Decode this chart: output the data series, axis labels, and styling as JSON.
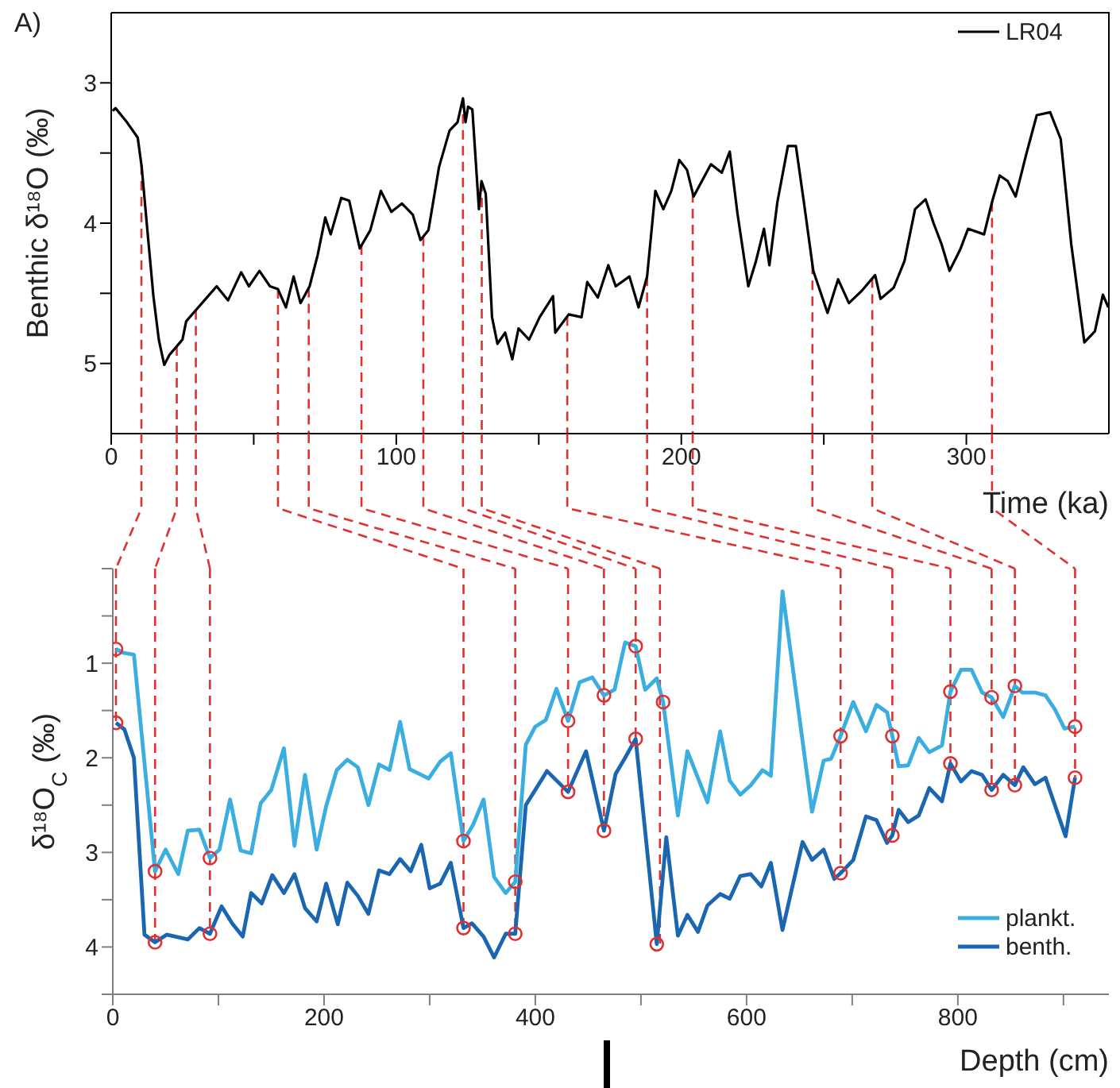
{
  "chart_data": [
    {
      "type": "line",
      "annotations": [
        "A)"
      ],
      "xlabel": "Time (ka)",
      "ylabel": "Benthic δ¹⁸O (‰)",
      "legend": "top right",
      "xlim": [
        0,
        350
      ],
      "xticks": [
        0,
        {
          "value": 50,
          "label": null
        },
        100,
        {
          "value": 150,
          "label": null
        },
        200,
        {
          "value": 250,
          "label": null
        },
        300
      ],
      "ylim": [
        5.5,
        2.5
      ],
      "yticks": [
        3,
        {
          "value": 3.5,
          "label": null
        },
        4,
        {
          "value": 4.5,
          "label": null
        },
        5
      ],
      "x": [
        0.5,
        1.5,
        5.5,
        9.3,
        10.7,
        12.6,
        14.8,
        16.7,
        18.6,
        20.4,
        25,
        26.3,
        29.7,
        37,
        41,
        45.6,
        48.3,
        52,
        55.7,
        58.5,
        61.3,
        64,
        66.4,
        69.6,
        72.4,
        75.1,
        77,
        80.7,
        83.5,
        87.2,
        90.9,
        94.6,
        98.3,
        102,
        105.8,
        108.5,
        111.3,
        115,
        118.7,
        121.5,
        123.4,
        124.3,
        125.2,
        126.7,
        129,
        129.9,
        131.4,
        133.6,
        135.5,
        138.2,
        140.7,
        142.9,
        146.6,
        150.3,
        155,
        155.8,
        160.5,
        165,
        167,
        170.7,
        174.4,
        177,
        181.8,
        185,
        188,
        190.9,
        193.7,
        196.5,
        199.3,
        202,
        204.3,
        210.4,
        214.2,
        217,
        219.7,
        223.5,
        226.2,
        229,
        230.9,
        233.7,
        237.4,
        240.2,
        243,
        246.3,
        251.3,
        255,
        258.8,
        263.4,
        268,
        269.9,
        274.5,
        278.3,
        282,
        285.7,
        288.5,
        291.3,
        294.1,
        297.8,
        300.6,
        306.2,
        309,
        311.7,
        314.5,
        317.3,
        321,
        324.7,
        329.4,
        333.1,
        336.8,
        341.4,
        345.1,
        347.9,
        349.8
      ],
      "series": [
        {
          "name": "LR04",
          "color": "#000000",
          "values": [
            3.2,
            3.18,
            3.28,
            3.39,
            3.6,
            4.03,
            4.52,
            4.83,
            5.01,
            4.94,
            4.83,
            4.7,
            4.62,
            4.45,
            4.55,
            4.35,
            4.45,
            4.34,
            4.45,
            4.47,
            4.6,
            4.38,
            4.57,
            4.45,
            4.23,
            3.96,
            4.08,
            3.82,
            3.84,
            4.18,
            4.05,
            3.77,
            3.92,
            3.86,
            3.94,
            4.12,
            4.05,
            3.6,
            3.34,
            3.28,
            3.11,
            3.28,
            3.17,
            3.19,
            3.9,
            3.7,
            3.79,
            4.67,
            4.86,
            4.78,
            4.97,
            4.75,
            4.83,
            4.67,
            4.52,
            4.78,
            4.65,
            4.67,
            4.42,
            4.53,
            4.3,
            4.45,
            4.38,
            4.6,
            4.38,
            3.77,
            3.9,
            3.77,
            3.55,
            3.62,
            3.81,
            3.58,
            3.64,
            3.49,
            3.93,
            4.45,
            4.27,
            4.04,
            4.3,
            3.85,
            3.45,
            3.45,
            3.85,
            4.34,
            4.64,
            4.4,
            4.57,
            4.48,
            4.37,
            4.54,
            4.46,
            4.27,
            3.9,
            3.83,
            4,
            4.15,
            4.34,
            4.19,
            4.04,
            4.08,
            3.85,
            3.66,
            3.7,
            3.81,
            3.51,
            3.23,
            3.21,
            3.4,
            4.15,
            4.85,
            4.77,
            4.51,
            4.6
          ]
        }
      ],
      "ref_lines": [
        {
          "axis": "x",
          "value": 10.6,
          "color": "#e03030",
          "line_style": "dashed"
        },
        {
          "axis": "x",
          "value": 23,
          "color": "#e03030",
          "line_style": "dashed"
        },
        {
          "axis": "x",
          "value": 29.7,
          "color": "#e03030",
          "line_style": "dashed"
        },
        {
          "axis": "x",
          "value": 58.5,
          "color": "#e03030",
          "line_style": "dashed"
        },
        {
          "axis": "x",
          "value": 69.3,
          "color": "#e03030",
          "line_style": "dashed"
        },
        {
          "axis": "x",
          "value": 87.8,
          "color": "#e03030",
          "line_style": "dashed"
        },
        {
          "axis": "x",
          "value": 109.5,
          "color": "#e03030",
          "line_style": "dashed"
        },
        {
          "axis": "x",
          "value": 123.4,
          "color": "#e03030",
          "line_style": "dashed"
        },
        {
          "axis": "x",
          "value": 130,
          "color": "#e03030",
          "line_style": "dashed"
        },
        {
          "axis": "x",
          "value": 160,
          "color": "#e03030",
          "line_style": "dashed"
        },
        {
          "axis": "x",
          "value": 188,
          "color": "#e03030",
          "line_style": "dashed"
        },
        {
          "axis": "x",
          "value": 204,
          "color": "#e03030",
          "line_style": "dashed"
        },
        {
          "axis": "x",
          "value": 246,
          "color": "#e03030",
          "line_style": "dashed"
        },
        {
          "axis": "x",
          "value": 267,
          "color": "#e03030",
          "line_style": "dashed"
        },
        {
          "axis": "x",
          "value": 309,
          "color": "#e03030",
          "line_style": "dashed"
        }
      ]
    },
    {
      "type": "line",
      "xlabel": "Depth (cm)",
      "ylabel": "δ¹⁸O$_{C}$ (‰)",
      "legend": "bottom right",
      "xlim": [
        0,
        943
      ],
      "xticks": [
        0,
        {
          "value": 100,
          "label": null
        },
        200,
        {
          "value": 300,
          "label": null
        },
        400,
        {
          "value": 500,
          "label": null
        },
        600,
        {
          "value": 700,
          "label": null
        },
        800,
        {
          "value": 900,
          "label": null
        }
      ],
      "ylim": [
        4.5,
        0
      ],
      "yticks": [
        {
          "value": 0,
          "label": null
        },
        {
          "value": 0.5,
          "label": null
        },
        1,
        {
          "value": 1.5,
          "label": null
        },
        2,
        {
          "value": 2.5,
          "label": null
        },
        3,
        {
          "value": 3.5,
          "label": null
        },
        4,
        {
          "value": 4.5,
          "label": null
        }
      ],
      "series": [
        {
          "name": "plankt.",
          "color": "#3aaee0",
          "x": [
            3,
            10,
            20,
            40,
            50,
            62,
            71,
            82,
            92,
            101,
            111,
            121,
            131,
            140,
            150,
            162,
            172,
            182,
            193,
            202,
            212,
            222,
            232,
            242,
            252,
            262,
            272,
            281,
            292,
            299,
            310,
            320,
            332,
            341,
            351,
            361,
            372,
            381,
            391,
            400,
            410,
            420,
            431,
            442,
            454,
            465,
            475,
            485,
            495,
            504,
            515,
            521,
            535,
            544,
            563,
            575,
            584,
            594,
            604,
            615,
            623,
            634,
            662,
            673,
            680,
            689,
            701,
            713,
            723,
            733,
            738,
            744,
            753,
            763,
            773,
            785,
            793,
            803,
            813,
            823,
            832,
            843,
            854,
            861,
            873,
            883,
            892,
            901,
            911
          ],
          "values": [
            0.85,
            0.89,
            0.91,
            3.2,
            2.97,
            3.23,
            2.77,
            2.76,
            3.06,
            2.97,
            2.44,
            2.98,
            3.01,
            2.48,
            2.34,
            1.9,
            2.93,
            2.18,
            2.97,
            2.51,
            2.13,
            2.02,
            2.1,
            2.5,
            2.07,
            2.13,
            1.62,
            2.12,
            2.18,
            2.22,
            2.04,
            1.95,
            2.88,
            2.71,
            2.44,
            3.26,
            3.43,
            3.31,
            1.86,
            1.67,
            1.6,
            1.27,
            1.61,
            1.2,
            1.15,
            1.34,
            1.28,
            0.78,
            0.82,
            1.28,
            1.16,
            1.41,
            2.61,
            1.93,
            2.47,
            1.72,
            2.24,
            2.39,
            2.29,
            2.13,
            2.19,
            0.24,
            2.57,
            2.03,
            2.01,
            1.77,
            1.41,
            1.72,
            1.44,
            1.52,
            1.77,
            2.09,
            2.08,
            1.79,
            1.94,
            1.87,
            1.3,
            1.07,
            1.07,
            1.31,
            1.36,
            1.57,
            1.24,
            1.31,
            1.31,
            1.34,
            1.49,
            1.69,
            1.67
          ]
        },
        {
          "name": "benth.",
          "color": "#1a66b0",
          "x": [
            3,
            11,
            20,
            30,
            40,
            51,
            71,
            82,
            92,
            103,
            113,
            123,
            131,
            141,
            151,
            162,
            172,
            182,
            193,
            202,
            213,
            222,
            232,
            242,
            252,
            262,
            272,
            282,
            292,
            300,
            310,
            320,
            332,
            340,
            351,
            361,
            372,
            381,
            391,
            411,
            431,
            448,
            465,
            476,
            485,
            495,
            515,
            524,
            535,
            544,
            554,
            563,
            575,
            584,
            594,
            604,
            614,
            623,
            634,
            653,
            662,
            673,
            683,
            689,
            701,
            713,
            723,
            733,
            738,
            744,
            753,
            763,
            773,
            785,
            793,
            803,
            813,
            823,
            832,
            843,
            854,
            862,
            873,
            883,
            902,
            911
          ],
          "values": [
            1.63,
            1.7,
            2.0,
            3.87,
            3.95,
            3.87,
            3.92,
            3.8,
            3.86,
            3.57,
            3.75,
            3.89,
            3.43,
            3.54,
            3.24,
            3.43,
            3.23,
            3.59,
            3.73,
            3.33,
            3.76,
            3.32,
            3.46,
            3.65,
            3.19,
            3.23,
            3.07,
            3.2,
            2.92,
            3.38,
            3.33,
            3.11,
            3.8,
            3.75,
            3.89,
            4.11,
            3.86,
            3.86,
            2.5,
            2.14,
            2.36,
            1.93,
            2.77,
            2.17,
            2.0,
            1.8,
            3.97,
            2.84,
            3.88,
            3.66,
            3.84,
            3.56,
            3.44,
            3.49,
            3.25,
            3.23,
            3.36,
            3.11,
            3.82,
            2.89,
            3.08,
            2.97,
            3.28,
            3.22,
            3.08,
            2.62,
            2.66,
            2.9,
            2.82,
            2.55,
            2.68,
            2.61,
            2.32,
            2.46,
            2.06,
            2.25,
            2.14,
            2.18,
            2.34,
            2.18,
            2.29,
            2.1,
            2.28,
            2.21,
            2.83,
            2.21
          ]
        },
        {
          "type": "scatter",
          "marker": "circle",
          "color": "#e03030",
          "x": [
            3,
            40,
            92,
            332,
            381,
            431,
            465,
            495,
            521,
            689,
            738,
            793,
            832,
            854,
            911
          ],
          "values": [
            0.85,
            3.2,
            3.06,
            2.88,
            3.31,
            1.61,
            1.34,
            0.82,
            1.41,
            1.77,
            1.77,
            1.3,
            1.36,
            1.24,
            1.67
          ]
        },
        {
          "type": "scatter",
          "marker": "circle",
          "color": "#e03030",
          "x": [
            3,
            40,
            92,
            332,
            381,
            431,
            465,
            495,
            515,
            689,
            738,
            793,
            832,
            854,
            911
          ],
          "values": [
            1.63,
            3.95,
            3.86,
            3.8,
            3.86,
            2.36,
            2.77,
            1.8,
            3.97,
            3.22,
            2.82,
            2.06,
            2.34,
            2.29,
            2.21
          ]
        }
      ],
      "ref_lines": [
        {
          "axis": "x",
          "value": 3,
          "color": "#e03030",
          "line_style": "dashed"
        },
        {
          "axis": "x",
          "value": 40,
          "color": "#e03030",
          "line_style": "dashed"
        },
        {
          "axis": "x",
          "value": 92,
          "color": "#e03030",
          "line_style": "dashed"
        },
        {
          "axis": "x",
          "value": 332,
          "color": "#e03030",
          "line_style": "dashed"
        },
        {
          "axis": "x",
          "value": 381,
          "color": "#e03030",
          "line_style": "dashed"
        },
        {
          "axis": "x",
          "value": 431,
          "color": "#e03030",
          "line_style": "dashed"
        },
        {
          "axis": "x",
          "value": 465,
          "color": "#e03030",
          "line_style": "dashed"
        },
        {
          "axis": "x",
          "value": 495,
          "color": "#e03030",
          "line_style": "dashed"
        },
        {
          "axis": "x",
          "value": 518,
          "color": "#e03030",
          "line_style": "dashed"
        },
        {
          "axis": "x",
          "value": 689,
          "color": "#e03030",
          "line_style": "dashed"
        },
        {
          "axis": "x",
          "value": 738,
          "color": "#e03030",
          "line_style": "dashed"
        },
        {
          "axis": "x",
          "value": 793,
          "color": "#e03030",
          "line_style": "dashed"
        },
        {
          "axis": "x",
          "value": 832,
          "color": "#e03030",
          "line_style": "dashed"
        },
        {
          "axis": "x",
          "value": 854,
          "color": "#e03030",
          "line_style": "dashed"
        },
        {
          "axis": "x",
          "value": 911,
          "color": "#e03030",
          "line_style": "dashed"
        }
      ]
    }
  ]
}
